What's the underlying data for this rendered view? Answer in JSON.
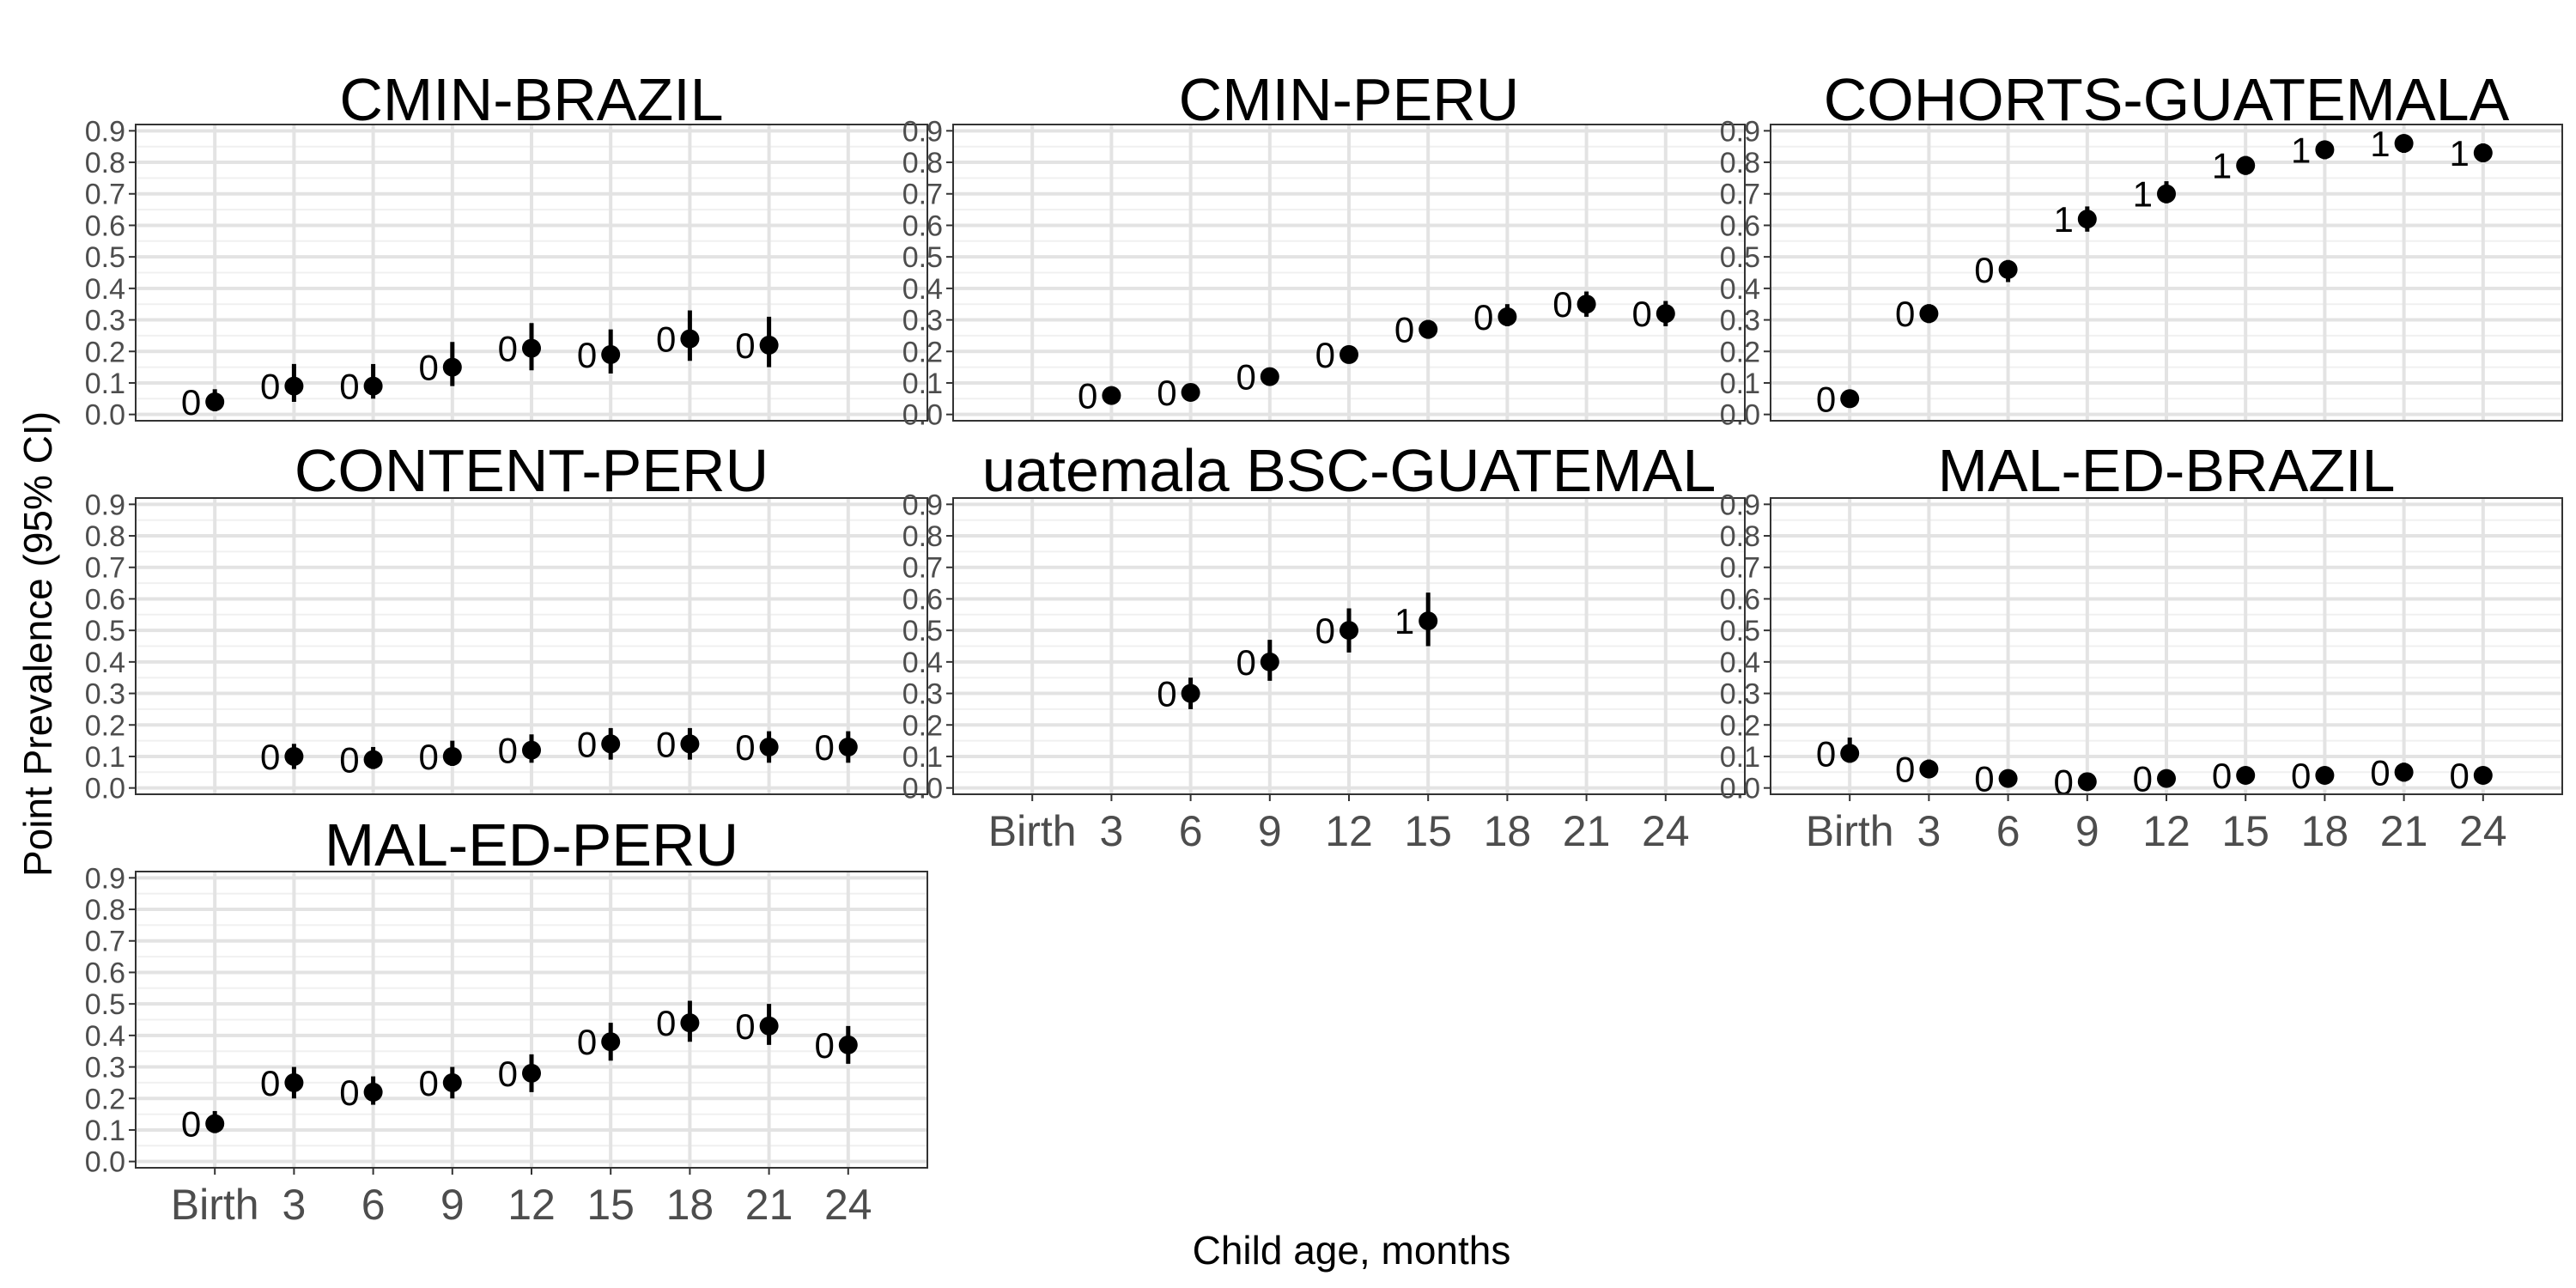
{
  "figure": {
    "ylabel": "Point Prevalence (95% CI)",
    "xlabel": "Child age, months"
  },
  "chart_data": {
    "type": "scatter",
    "facet_layout": "3x3",
    "x_categories": [
      "Birth",
      "3",
      "6",
      "9",
      "12",
      "15",
      "18",
      "21",
      "24"
    ],
    "y_ticks": [
      "0.0",
      "0.1",
      "0.2",
      "0.3",
      "0.4",
      "0.5",
      "0.6",
      "0.7",
      "0.8",
      "0.9"
    ],
    "ylim": [
      -0.02,
      0.92
    ],
    "grid": true,
    "marker_color": "#000000",
    "panels": [
      {
        "title": "CMIN-BRAZIL",
        "points": [
          {
            "x": "Birth",
            "y": 0.04,
            "lo": 0.01,
            "hi": 0.08,
            "label": "0"
          },
          {
            "x": "3",
            "y": 0.09,
            "lo": 0.04,
            "hi": 0.16,
            "label": "0"
          },
          {
            "x": "6",
            "y": 0.09,
            "lo": 0.05,
            "hi": 0.16,
            "label": "0"
          },
          {
            "x": "9",
            "y": 0.15,
            "lo": 0.09,
            "hi": 0.23,
            "label": "0"
          },
          {
            "x": "12",
            "y": 0.21,
            "lo": 0.14,
            "hi": 0.29,
            "label": "0"
          },
          {
            "x": "15",
            "y": 0.19,
            "lo": 0.13,
            "hi": 0.27,
            "label": "0"
          },
          {
            "x": "18",
            "y": 0.24,
            "lo": 0.17,
            "hi": 0.33,
            "label": "0"
          },
          {
            "x": "21",
            "y": 0.22,
            "lo": 0.15,
            "hi": 0.31,
            "label": "0"
          }
        ]
      },
      {
        "title": "CMIN-PERU",
        "points": [
          {
            "x": "3",
            "y": 0.06,
            "lo": 0.04,
            "hi": 0.08,
            "label": "0"
          },
          {
            "x": "6",
            "y": 0.07,
            "lo": 0.05,
            "hi": 0.09,
            "label": "0"
          },
          {
            "x": "9",
            "y": 0.12,
            "lo": 0.1,
            "hi": 0.14,
            "label": "0"
          },
          {
            "x": "12",
            "y": 0.19,
            "lo": 0.17,
            "hi": 0.21,
            "label": "0"
          },
          {
            "x": "15",
            "y": 0.27,
            "lo": 0.24,
            "hi": 0.3,
            "label": "0"
          },
          {
            "x": "18",
            "y": 0.31,
            "lo": 0.28,
            "hi": 0.35,
            "label": "0"
          },
          {
            "x": "21",
            "y": 0.35,
            "lo": 0.31,
            "hi": 0.39,
            "label": "0"
          },
          {
            "x": "24",
            "y": 0.32,
            "lo": 0.28,
            "hi": 0.36,
            "label": "0"
          }
        ]
      },
      {
        "title": "COHORTS-GUATEMALA",
        "points": [
          {
            "x": "Birth",
            "y": 0.05,
            "lo": 0.04,
            "hi": 0.06,
            "label": "0"
          },
          {
            "x": "3",
            "y": 0.32,
            "lo": 0.29,
            "hi": 0.35,
            "label": "0"
          },
          {
            "x": "6",
            "y": 0.46,
            "lo": 0.42,
            "hi": 0.49,
            "label": "0"
          },
          {
            "x": "9",
            "y": 0.62,
            "lo": 0.58,
            "hi": 0.66,
            "label": "1"
          },
          {
            "x": "12",
            "y": 0.7,
            "lo": 0.67,
            "hi": 0.74,
            "label": "1"
          },
          {
            "x": "15",
            "y": 0.79,
            "lo": 0.76,
            "hi": 0.82,
            "label": "1"
          },
          {
            "x": "18",
            "y": 0.84,
            "lo": 0.81,
            "hi": 0.86,
            "label": "1"
          },
          {
            "x": "21",
            "y": 0.86,
            "lo": 0.83,
            "hi": 0.88,
            "label": "1"
          },
          {
            "x": "24",
            "y": 0.83,
            "lo": 0.8,
            "hi": 0.86,
            "label": "1"
          }
        ]
      },
      {
        "title": "CONTENT-PERU",
        "points": [
          {
            "x": "3",
            "y": 0.1,
            "lo": 0.06,
            "hi": 0.14,
            "label": "0"
          },
          {
            "x": "6",
            "y": 0.09,
            "lo": 0.06,
            "hi": 0.13,
            "label": "0"
          },
          {
            "x": "9",
            "y": 0.1,
            "lo": 0.07,
            "hi": 0.15,
            "label": "0"
          },
          {
            "x": "12",
            "y": 0.12,
            "lo": 0.08,
            "hi": 0.17,
            "label": "0"
          },
          {
            "x": "15",
            "y": 0.14,
            "lo": 0.09,
            "hi": 0.19,
            "label": "0"
          },
          {
            "x": "18",
            "y": 0.14,
            "lo": 0.09,
            "hi": 0.19,
            "label": "0"
          },
          {
            "x": "21",
            "y": 0.13,
            "lo": 0.08,
            "hi": 0.18,
            "label": "0"
          },
          {
            "x": "24",
            "y": 0.13,
            "lo": 0.08,
            "hi": 0.18,
            "label": "0"
          }
        ]
      },
      {
        "title": "uatemala BSC-GUATEMAL",
        "points": [
          {
            "x": "6",
            "y": 0.3,
            "lo": 0.25,
            "hi": 0.35,
            "label": "0"
          },
          {
            "x": "9",
            "y": 0.4,
            "lo": 0.34,
            "hi": 0.47,
            "label": "0"
          },
          {
            "x": "12",
            "y": 0.5,
            "lo": 0.43,
            "hi": 0.57,
            "label": "0"
          },
          {
            "x": "15",
            "y": 0.53,
            "lo": 0.45,
            "hi": 0.62,
            "label": "1"
          }
        ]
      },
      {
        "title": "MAL-ED-BRAZIL",
        "points": [
          {
            "x": "Birth",
            "y": 0.11,
            "lo": 0.08,
            "hi": 0.16,
            "label": "0"
          },
          {
            "x": "3",
            "y": 0.06,
            "lo": 0.04,
            "hi": 0.09,
            "label": "0"
          },
          {
            "x": "6",
            "y": 0.03,
            "lo": 0.01,
            "hi": 0.05,
            "label": "0"
          },
          {
            "x": "9",
            "y": 0.02,
            "lo": 0.0,
            "hi": 0.04,
            "label": "0"
          },
          {
            "x": "12",
            "y": 0.03,
            "lo": 0.01,
            "hi": 0.05,
            "label": "0"
          },
          {
            "x": "15",
            "y": 0.04,
            "lo": 0.02,
            "hi": 0.06,
            "label": "0"
          },
          {
            "x": "18",
            "y": 0.04,
            "lo": 0.02,
            "hi": 0.06,
            "label": "0"
          },
          {
            "x": "21",
            "y": 0.05,
            "lo": 0.02,
            "hi": 0.08,
            "label": "0"
          },
          {
            "x": "24",
            "y": 0.04,
            "lo": 0.02,
            "hi": 0.06,
            "label": "0"
          }
        ]
      },
      {
        "title": "MAL-ED-PERU",
        "points": [
          {
            "x": "Birth",
            "y": 0.12,
            "lo": 0.09,
            "hi": 0.16,
            "label": "0"
          },
          {
            "x": "3",
            "y": 0.25,
            "lo": 0.2,
            "hi": 0.3,
            "label": "0"
          },
          {
            "x": "6",
            "y": 0.22,
            "lo": 0.18,
            "hi": 0.27,
            "label": "0"
          },
          {
            "x": "9",
            "y": 0.25,
            "lo": 0.2,
            "hi": 0.3,
            "label": "0"
          },
          {
            "x": "12",
            "y": 0.28,
            "lo": 0.22,
            "hi": 0.34,
            "label": "0"
          },
          {
            "x": "15",
            "y": 0.38,
            "lo": 0.32,
            "hi": 0.44,
            "label": "0"
          },
          {
            "x": "18",
            "y": 0.44,
            "lo": 0.38,
            "hi": 0.51,
            "label": "0"
          },
          {
            "x": "21",
            "y": 0.43,
            "lo": 0.37,
            "hi": 0.5,
            "label": "0"
          },
          {
            "x": "24",
            "y": 0.37,
            "lo": 0.31,
            "hi": 0.43,
            "label": "0"
          }
        ]
      }
    ]
  }
}
